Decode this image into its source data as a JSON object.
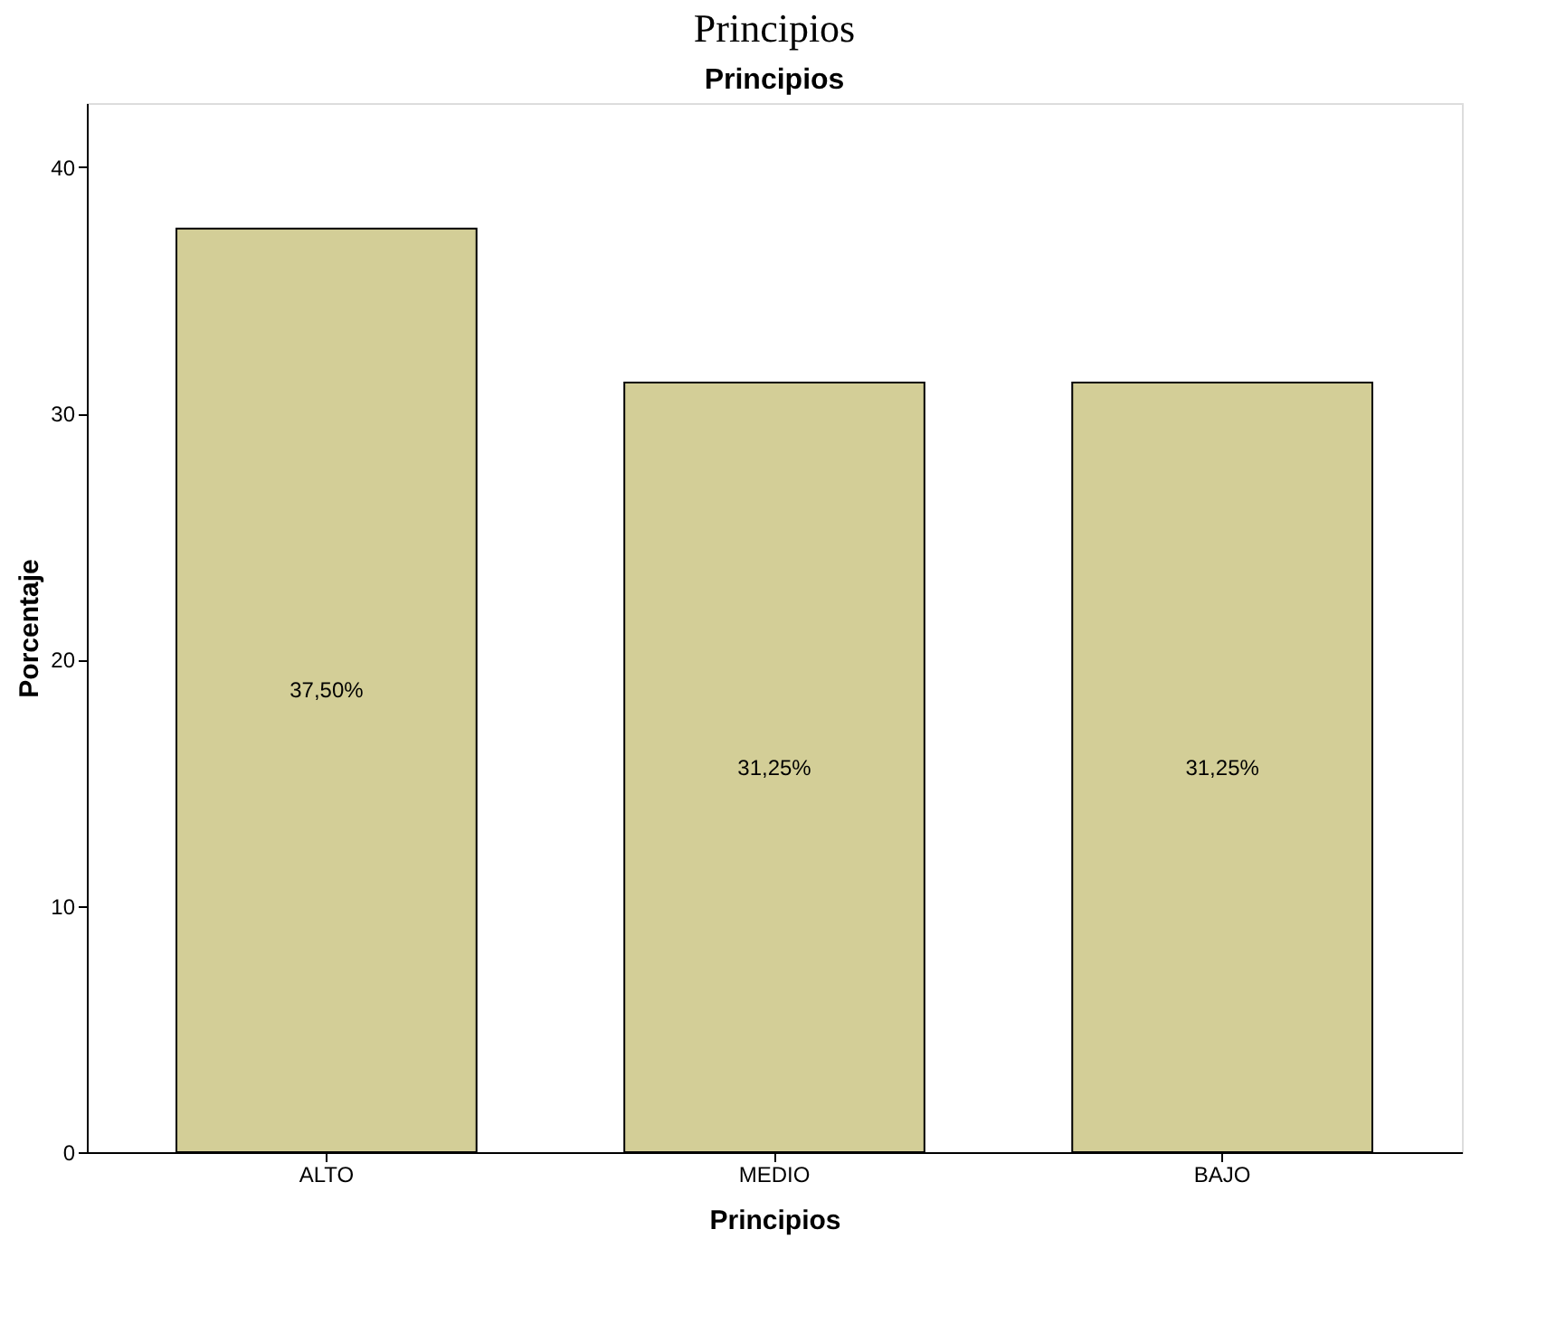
{
  "chart_data": {
    "type": "bar",
    "title": "Principios",
    "subtitle": "Principios",
    "xlabel": "Principios",
    "ylabel": "Porcentaje",
    "categories": [
      "ALTO",
      "MEDIO",
      "BAJO"
    ],
    "values": [
      37.5,
      31.25,
      31.25
    ],
    "value_labels": [
      "37,50%",
      "31,25%",
      "31,25%"
    ],
    "color": "#d3ce97",
    "ylim": [
      0,
      42.6
    ],
    "yticks": [
      0,
      10,
      20,
      30,
      40
    ],
    "grid": false
  }
}
